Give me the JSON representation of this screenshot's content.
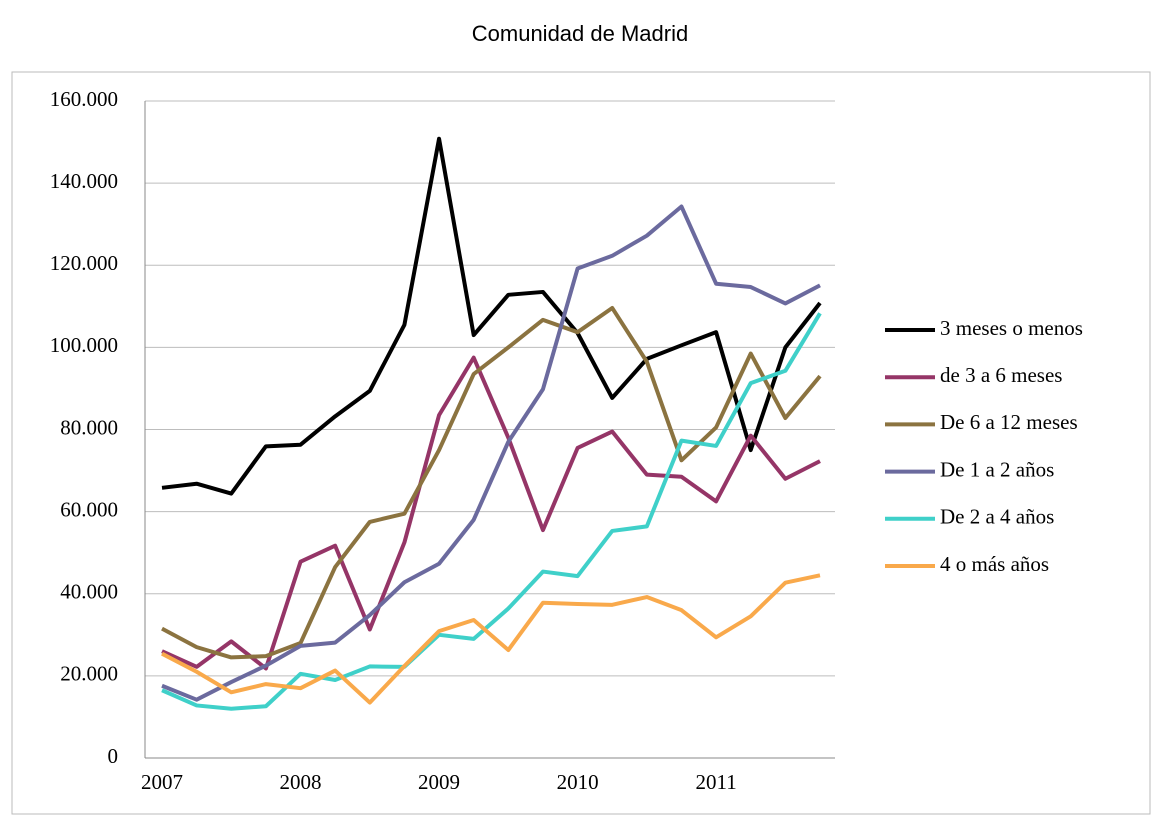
{
  "chart_data": {
    "type": "line",
    "title": "Comunidad de Madrid",
    "categories": [
      "2007",
      null,
      null,
      null,
      "2008",
      null,
      null,
      null,
      "2009",
      null,
      null,
      null,
      "2010",
      null,
      null,
      null,
      "2011",
      null,
      null,
      null
    ],
    "series": [
      {
        "name": "3 meses o menos",
        "color": "#000000",
        "values": [
          65800,
          66800,
          64400,
          75900,
          76300,
          83200,
          89400,
          105500,
          150800,
          103000,
          112800,
          113500,
          103500,
          87700,
          97200,
          100500,
          103700,
          75000,
          100000,
          110800
        ]
      },
      {
        "name": "de 3 a 6 meses",
        "color": "#953567",
        "values": [
          26000,
          22200,
          28400,
          21800,
          47800,
          51700,
          31300,
          52500,
          83500,
          97500,
          78000,
          55500,
          75500,
          79500,
          69000,
          68500,
          62500,
          78500,
          68000,
          72300
        ]
      },
      {
        "name": "De 6 a 12 meses",
        "color": "#8b7340",
        "values": [
          31500,
          27000,
          24500,
          24800,
          28000,
          46500,
          57500,
          59500,
          75000,
          93500,
          100000,
          106700,
          103700,
          109600,
          96500,
          72500,
          80500,
          98500,
          82800,
          93000
        ]
      },
      {
        "name": "De 1 a 2 años",
        "color": "#6b6a9e",
        "values": [
          17600,
          14200,
          18500,
          22500,
          27300,
          28100,
          34800,
          42800,
          47300,
          58000,
          77000,
          89800,
          119200,
          122300,
          127200,
          134300,
          115500,
          114700,
          110700,
          115100
        ]
      },
      {
        "name": "De 2 a 4 años",
        "color": "#3fd0c9",
        "values": [
          16500,
          12800,
          12000,
          12600,
          20500,
          19000,
          22300,
          22200,
          30000,
          29000,
          36400,
          45400,
          44300,
          55300,
          56400,
          77300,
          76000,
          91300,
          94300,
          108300
        ]
      },
      {
        "name": "4 o más años",
        "color": "#f9a94b",
        "values": [
          25400,
          21000,
          16000,
          18000,
          17000,
          21300,
          13500,
          22400,
          30900,
          33600,
          26300,
          37800,
          37500,
          37300,
          39200,
          36000,
          29400,
          34500,
          42700,
          44500
        ]
      }
    ],
    "ylim": [
      0,
      160000
    ],
    "yticks": [
      0,
      {
        "value": 20000,
        "label": "20.000"
      },
      {
        "value": 40000,
        "label": "40.000"
      },
      {
        "value": 60000,
        "label": "60.000"
      },
      {
        "value": 80000,
        "label": "80.000"
      },
      {
        "value": 100000,
        "label": "100.000"
      },
      {
        "value": 120000,
        "label": "120.000"
      },
      {
        "value": 140000,
        "label": "140.000"
      },
      {
        "value": 160000,
        "label": "160.000"
      }
    ],
    "grid": true,
    "legend": "right"
  }
}
